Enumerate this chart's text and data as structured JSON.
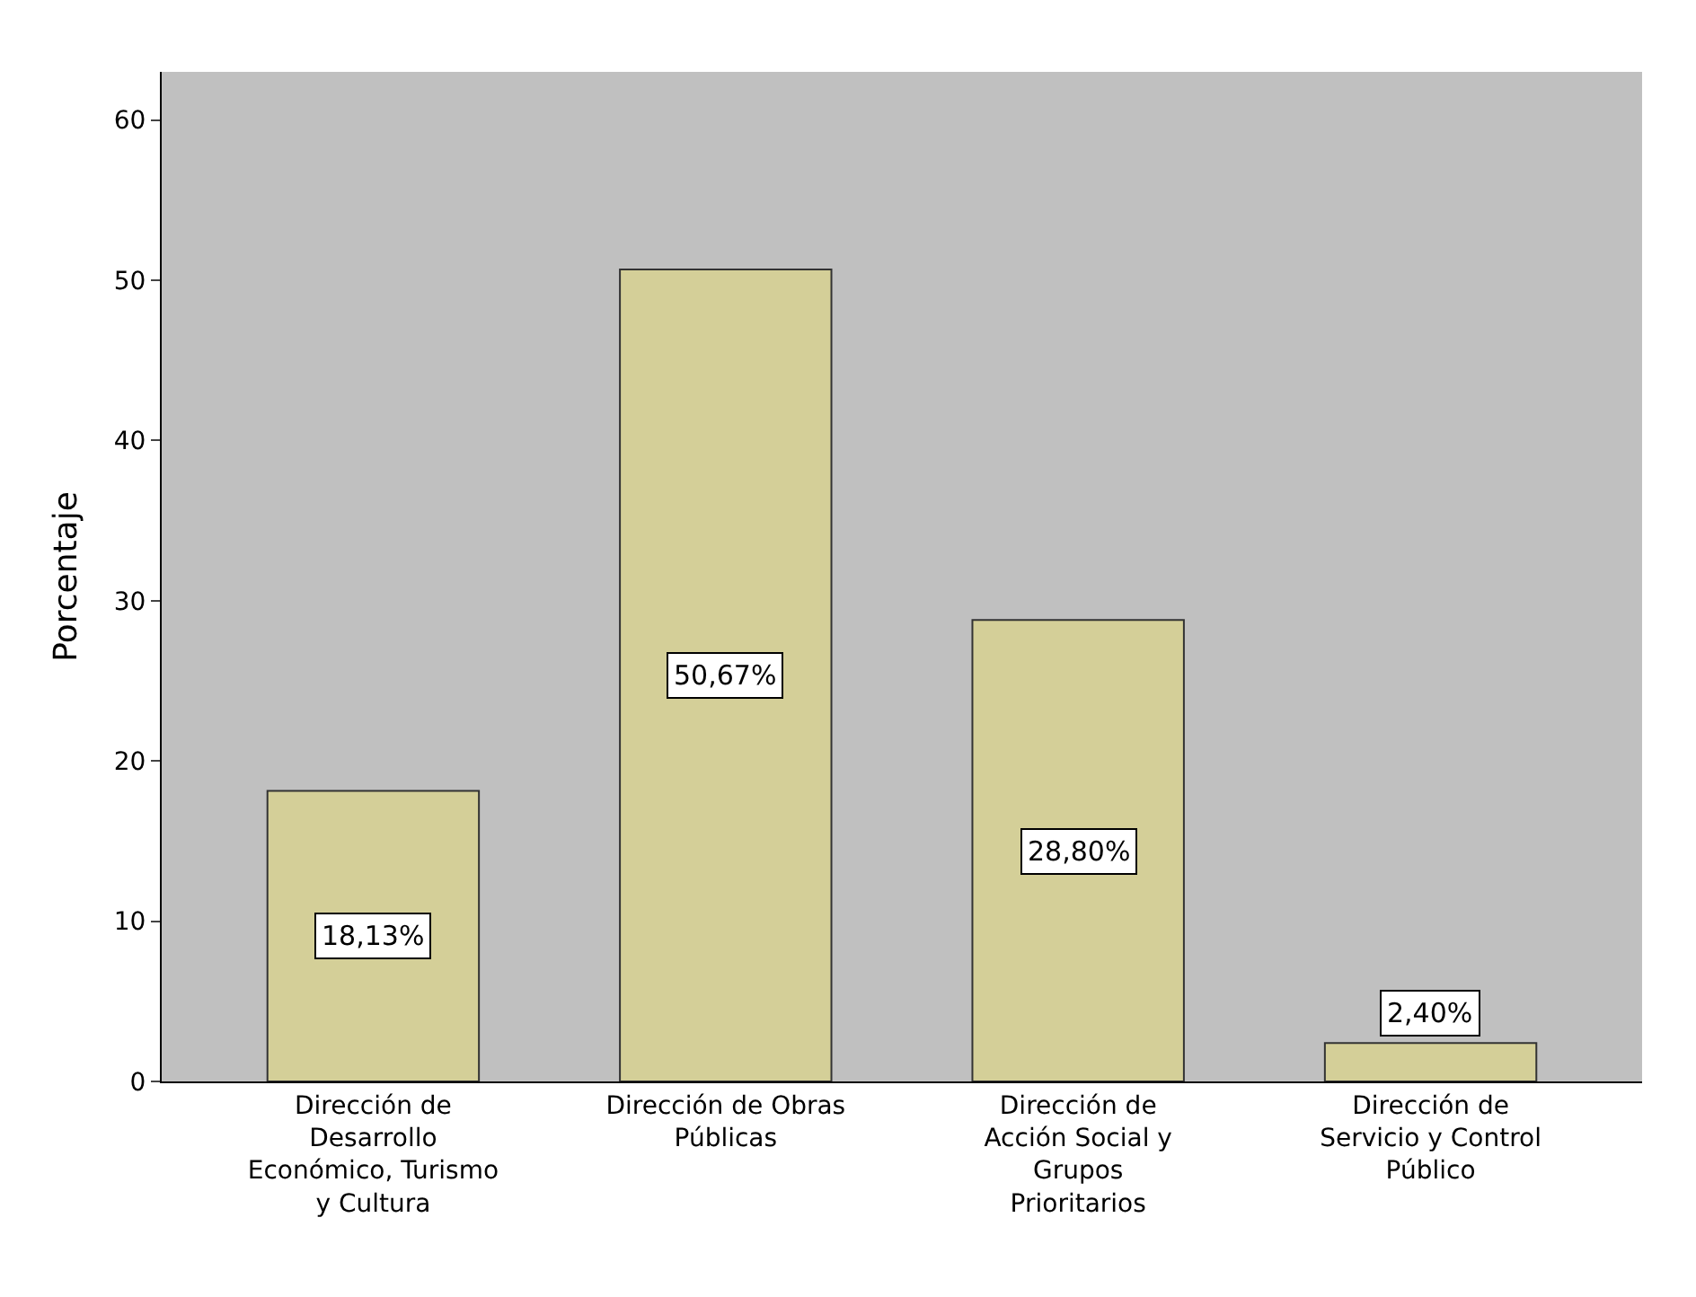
{
  "chart_data": {
    "type": "bar",
    "ylabel": "Porcentaje",
    "categories": [
      "Dirección de Desarrollo Económico, Turismo y Cultura",
      "Dirección de Obras Públicas",
      "Dirección de Acción Social y Grupos Prioritarios",
      "Dirección de Servicio y Control Público"
    ],
    "values": [
      18.13,
      50.67,
      28.8,
      2.4
    ],
    "value_labels": [
      "18,13%",
      "50,67%",
      "28,80%",
      "2,40%"
    ],
    "color": "#d4cf98",
    "ylim": [
      0,
      63
    ],
    "yticks": [
      0,
      10,
      20,
      30,
      40,
      50,
      60
    ],
    "grid": false,
    "legend": false
  }
}
